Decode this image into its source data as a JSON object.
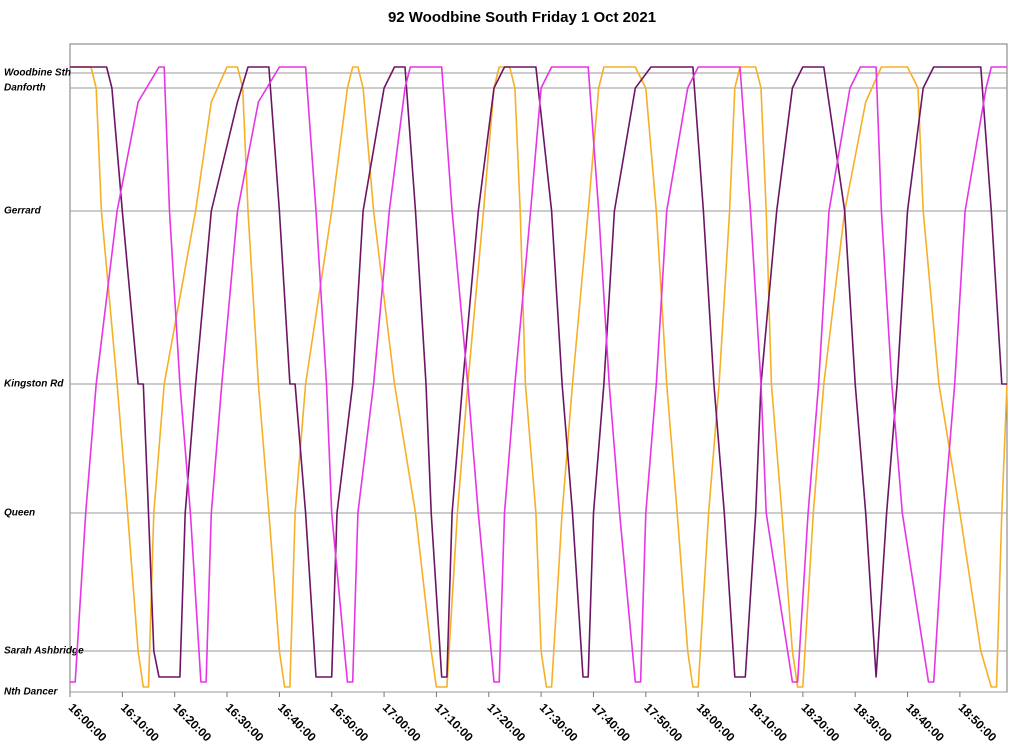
{
  "chart_data": {
    "type": "line",
    "title": "92 Woodbine South Friday 1 Oct 2021",
    "xlim": [
      "16:00:00",
      "18:59:00"
    ],
    "xticks": [
      "16:00:00",
      "16:10:00",
      "16:20:00",
      "16:30:00",
      "16:40:00",
      "16:50:00",
      "17:00:00",
      "17:10:00",
      "17:20:00",
      "17:30:00",
      "17:40:00",
      "17:50:00",
      "18:00:00",
      "18:10:00",
      "18:20:00",
      "18:30:00",
      "18:40:00",
      "18:50:00"
    ],
    "ylim": [
      0,
      648
    ],
    "yticks": [
      {
        "value": 0,
        "label": "Nth Dancer"
      },
      {
        "value": 41,
        "label": "Sarah Ashbridge"
      },
      {
        "value": 179,
        "label": "Queen"
      },
      {
        "value": 308,
        "label": "Kingston Rd"
      },
      {
        "value": 481,
        "label": "Gerrard"
      },
      {
        "value": 604,
        "label": "Danforth"
      },
      {
        "value": 619,
        "label": "Woodbine Sth"
      }
    ],
    "grid": true,
    "series": [
      {
        "color": "#f5b027",
        "x": [
          "16:00:00",
          "16:04:00",
          "16:05:00",
          "16:06:00",
          "16:09:00",
          "16:11:00",
          "16:13:00",
          "16:14:00",
          "16:15:00",
          "16:16:00",
          "16:18:00",
          "16:24:00",
          "16:27:00",
          "16:30:00",
          "16:32:00",
          "16:33:00",
          "16:34:00",
          "16:36:00",
          "16:38:00",
          "16:40:00",
          "16:41:00",
          "16:42:00",
          "16:43:00",
          "16:45:00",
          "16:50:00",
          "16:53:00",
          "16:54:00",
          "16:55:00",
          "16:56:00",
          "16:58:00",
          "17:02:00",
          "17:06:00",
          "17:09:00",
          "17:10:00",
          "17:12:00",
          "17:14:00",
          "17:16:00",
          "17:19:00",
          "17:21:00",
          "17:22:00",
          "17:24:00",
          "17:25:00",
          "17:26:00",
          "17:27:00",
          "17:29:00",
          "17:30:00",
          "17:31:00",
          "17:32:00",
          "17:34:00",
          "17:36:00",
          "17:39:00",
          "17:41:00",
          "17:42:00",
          "17:48:00",
          "17:50:00",
          "17:52:00",
          "17:54:00",
          "17:56:00",
          "17:58:00",
          "17:59:00",
          "18:00:00",
          "18:02:00",
          "18:04:00",
          "18:06:00",
          "18:07:00",
          "18:08:00",
          "18:11:00",
          "18:12:00",
          "18:13:00",
          "18:14:00",
          "18:16:00",
          "18:18:00",
          "18:19:00",
          "18:20:00",
          "18:22:00",
          "18:24:00",
          "18:28:00",
          "18:32:00",
          "18:35:00",
          "18:40:00",
          "18:42:00",
          "18:43:00",
          "18:46:00",
          "18:50:00",
          "18:54:00",
          "18:56:00",
          "18:57:00",
          "18:58:00",
          "18:59:00"
        ],
        "values": [
          625,
          625,
          604,
          481,
          308,
          179,
          41,
          5,
          5,
          179,
          308,
          481,
          590,
          625,
          625,
          604,
          481,
          308,
          179,
          41,
          5,
          5,
          179,
          308,
          481,
          604,
          625,
          625,
          604,
          481,
          308,
          179,
          41,
          5,
          5,
          179,
          308,
          481,
          604,
          625,
          625,
          604,
          481,
          308,
          179,
          41,
          5,
          5,
          179,
          308,
          481,
          604,
          625,
          625,
          604,
          481,
          308,
          179,
          41,
          5,
          5,
          179,
          308,
          481,
          604,
          625,
          625,
          604,
          481,
          308,
          179,
          41,
          5,
          5,
          179,
          308,
          481,
          590,
          625,
          625,
          604,
          481,
          308,
          179,
          41,
          5,
          5,
          179,
          308
        ]
      },
      {
        "color": "#6c1565",
        "x": [
          "16:00:00",
          "16:07:00",
          "16:08:00",
          "16:10:00",
          "16:13:00",
          "16:14:00",
          "16:15:00",
          "16:16:00",
          "16:17:00",
          "16:21:00",
          "16:22:00",
          "16:24:00",
          "16:27:00",
          "16:32:00",
          "16:34:00",
          "16:38:00",
          "16:40:00",
          "16:42:00",
          "16:43:00",
          "16:45:00",
          "16:47:00",
          "16:50:00",
          "16:51:00",
          "16:54:00",
          "16:56:00",
          "17:00:00",
          "17:02:00",
          "17:04:00",
          "17:06:00",
          "17:08:00",
          "17:09:00",
          "17:11:00",
          "17:12:00",
          "17:13:00",
          "17:15:00",
          "17:18:00",
          "17:21:00",
          "17:23:00",
          "17:29:00",
          "17:32:00",
          "17:34:00",
          "17:36:00",
          "17:38:00",
          "17:39:00",
          "17:40:00",
          "17:42:00",
          "17:44:00",
          "17:48:00",
          "17:51:00",
          "17:59:00",
          "18:01:00",
          "18:03:00",
          "18:05:00",
          "18:07:00",
          "18:09:00",
          "18:11:00",
          "18:12:00",
          "18:15:00",
          "18:18:00",
          "18:20:00",
          "18:24:00",
          "18:28:00",
          "18:30:00",
          "18:32:00",
          "18:34:00",
          "18:36:00",
          "18:38:00",
          "18:40:00",
          "18:43:00",
          "18:45:00",
          "18:54:00",
          "18:56:00",
          "18:58:00",
          "18:59:00"
        ],
        "values": [
          625,
          625,
          604,
          481,
          308,
          308,
          179,
          41,
          15,
          15,
          179,
          308,
          481,
          590,
          625,
          625,
          481,
          308,
          308,
          179,
          15,
          15,
          179,
          308,
          481,
          604,
          625,
          625,
          481,
          308,
          179,
          15,
          15,
          179,
          308,
          481,
          604,
          625,
          625,
          481,
          308,
          179,
          15,
          15,
          179,
          308,
          481,
          604,
          625,
          625,
          481,
          308,
          179,
          15,
          15,
          179,
          308,
          481,
          604,
          625,
          625,
          481,
          308,
          179,
          15,
          179,
          308,
          481,
          604,
          625,
          625,
          481,
          308,
          308
        ]
      },
      {
        "color": "#e635e6",
        "x": [
          "16:00:00",
          "16:01:00",
          "16:03:00",
          "16:05:00",
          "16:09:00",
          "16:13:00",
          "16:17:00",
          "16:18:00",
          "16:19:00",
          "16:21:00",
          "16:23:00",
          "16:25:00",
          "16:26:00",
          "16:27:00",
          "16:29:00",
          "16:32:00",
          "16:36:00",
          "16:40:00",
          "16:45:00",
          "16:47:00",
          "16:49:00",
          "16:50:00",
          "16:53:00",
          "16:54:00",
          "16:55:00",
          "16:58:00",
          "17:01:00",
          "17:04:00",
          "17:05:00",
          "17:11:00",
          "17:13:00",
          "17:16:00",
          "17:18:00",
          "17:21:00",
          "17:22:00",
          "17:23:00",
          "17:25:00",
          "17:28:00",
          "17:30:00",
          "17:32:00",
          "17:39:00",
          "17:41:00",
          "17:43:00",
          "17:45:00",
          "17:48:00",
          "17:49:00",
          "17:50:00",
          "17:52:00",
          "17:54:00",
          "17:58:00",
          "18:00:00",
          "18:08:00",
          "18:10:00",
          "18:12:00",
          "18:13:00",
          "18:18:00",
          "18:19:00",
          "18:21:00",
          "18:23:00",
          "18:25:00",
          "18:29:00",
          "18:31:00",
          "18:34:00",
          "18:35:00",
          "18:37:00",
          "18:39:00",
          "18:44:00",
          "18:45:00",
          "18:47:00",
          "18:49:00",
          "18:51:00",
          "18:55:00",
          "18:56:00",
          "18:59:00"
        ],
        "values": [
          10,
          10,
          179,
          308,
          481,
          590,
          625,
          625,
          481,
          308,
          179,
          10,
          10,
          179,
          308,
          481,
          590,
          625,
          625,
          481,
          308,
          179,
          10,
          10,
          179,
          308,
          481,
          604,
          625,
          625,
          481,
          308,
          179,
          10,
          10,
          179,
          308,
          481,
          604,
          625,
          625,
          481,
          308,
          179,
          10,
          10,
          179,
          308,
          481,
          604,
          625,
          625,
          481,
          308,
          179,
          10,
          10,
          179,
          308,
          481,
          604,
          625,
          625,
          481,
          308,
          179,
          10,
          10,
          179,
          308,
          481,
          604,
          625,
          625
        ]
      }
    ]
  }
}
